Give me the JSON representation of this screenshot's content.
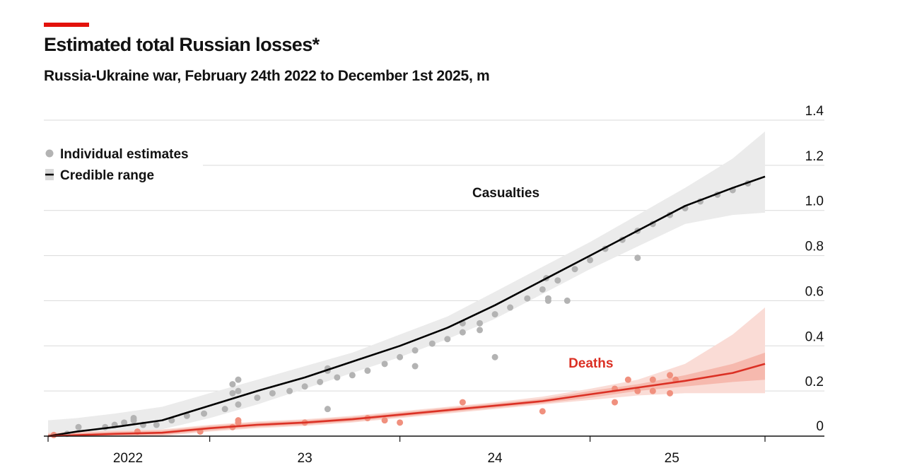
{
  "colors": {
    "accent": "#e3120b",
    "casualties_line": "#000000",
    "casualties_band": "#ebebeb",
    "casualties_points": "#b3b3b3",
    "deaths_line": "#db3024",
    "deaths_band_outer": "#fadcd6",
    "deaths_band_inner": "#f6b9ae",
    "deaths_points": "#f0907e",
    "grid": "#d9d9d9"
  },
  "chart_data": {
    "type": "line",
    "title": "Estimated total Russian losses*",
    "subtitle": "Russia-Ukraine war, February 24th 2022 to December 1st 2025, m",
    "ylabel": "",
    "xlabel": "",
    "ylim": [
      0,
      1.4
    ],
    "xlim": [
      2022.15,
      2025.92
    ],
    "y_ticks": [
      0,
      0.2,
      0.4,
      0.6,
      0.8,
      1.0,
      1.2,
      1.4
    ],
    "y_tick_labels": [
      "0",
      "0.2",
      "0.4",
      "0.6",
      "0.8",
      "1.0",
      "1.2",
      "1.4"
    ],
    "x_tick_positions": [
      2022.15,
      2023.0,
      2024.0,
      2025.0,
      2025.92
    ],
    "x_labels": [
      {
        "x": 2022.57,
        "label": "2022"
      },
      {
        "x": 2023.5,
        "label": "23"
      },
      {
        "x": 2024.5,
        "label": "24"
      },
      {
        "x": 2025.43,
        "label": "25"
      }
    ],
    "legend": [
      {
        "label": "Individual estimates",
        "marker": "dot"
      },
      {
        "label": "Credible range",
        "marker": "line-band"
      }
    ],
    "series": [
      {
        "name": "Casualties",
        "label_at": {
          "x": 2025.05,
          "y": 1.08
        },
        "central": [
          [
            2022.15,
            0.0
          ],
          [
            2022.3,
            0.02
          ],
          [
            2022.5,
            0.04
          ],
          [
            2022.75,
            0.07
          ],
          [
            2023.0,
            0.135
          ],
          [
            2023.25,
            0.2
          ],
          [
            2023.5,
            0.26
          ],
          [
            2023.75,
            0.33
          ],
          [
            2024.0,
            0.4
          ],
          [
            2024.25,
            0.48
          ],
          [
            2024.5,
            0.58
          ],
          [
            2024.75,
            0.69
          ],
          [
            2025.0,
            0.8
          ],
          [
            2025.25,
            0.91
          ],
          [
            2025.5,
            1.02
          ],
          [
            2025.75,
            1.1
          ],
          [
            2025.92,
            1.15
          ]
        ],
        "upper": [
          [
            2022.15,
            0.07
          ],
          [
            2022.3,
            0.08
          ],
          [
            2022.5,
            0.1
          ],
          [
            2022.75,
            0.13
          ],
          [
            2023.0,
            0.19
          ],
          [
            2023.25,
            0.25
          ],
          [
            2023.5,
            0.31
          ],
          [
            2023.75,
            0.37
          ],
          [
            2024.0,
            0.45
          ],
          [
            2024.25,
            0.53
          ],
          [
            2024.5,
            0.64
          ],
          [
            2024.75,
            0.75
          ],
          [
            2025.0,
            0.86
          ],
          [
            2025.25,
            0.98
          ],
          [
            2025.5,
            1.1
          ],
          [
            2025.75,
            1.23
          ],
          [
            2025.92,
            1.35
          ]
        ],
        "lower": [
          [
            2022.15,
            0.0
          ],
          [
            2022.3,
            0.0
          ],
          [
            2022.5,
            0.01
          ],
          [
            2022.75,
            0.03
          ],
          [
            2023.0,
            0.08
          ],
          [
            2023.25,
            0.14
          ],
          [
            2023.5,
            0.21
          ],
          [
            2023.75,
            0.28
          ],
          [
            2024.0,
            0.35
          ],
          [
            2024.25,
            0.43
          ],
          [
            2024.5,
            0.52
          ],
          [
            2024.75,
            0.63
          ],
          [
            2025.0,
            0.74
          ],
          [
            2025.25,
            0.84
          ],
          [
            2025.5,
            0.94
          ],
          [
            2025.75,
            0.98
          ],
          [
            2025.92,
            0.99
          ]
        ],
        "estimates": [
          [
            2022.25,
            0.01
          ],
          [
            2022.31,
            0.04
          ],
          [
            2022.45,
            0.04
          ],
          [
            2022.5,
            0.05
          ],
          [
            2022.55,
            0.06
          ],
          [
            2022.6,
            0.07
          ],
          [
            2022.6,
            0.08
          ],
          [
            2022.65,
            0.05
          ],
          [
            2022.72,
            0.05
          ],
          [
            2022.8,
            0.07
          ],
          [
            2022.88,
            0.09
          ],
          [
            2022.97,
            0.1
          ],
          [
            2023.08,
            0.12
          ],
          [
            2023.12,
            0.23
          ],
          [
            2023.12,
            0.19
          ],
          [
            2023.15,
            0.25
          ],
          [
            2023.15,
            0.2
          ],
          [
            2023.15,
            0.14
          ],
          [
            2023.25,
            0.17
          ],
          [
            2023.33,
            0.19
          ],
          [
            2023.42,
            0.2
          ],
          [
            2023.5,
            0.22
          ],
          [
            2023.58,
            0.24
          ],
          [
            2023.62,
            0.3
          ],
          [
            2023.62,
            0.29
          ],
          [
            2023.62,
            0.12
          ],
          [
            2023.67,
            0.26
          ],
          [
            2023.75,
            0.27
          ],
          [
            2023.83,
            0.29
          ],
          [
            2023.92,
            0.32
          ],
          [
            2024.0,
            0.35
          ],
          [
            2024.08,
            0.38
          ],
          [
            2024.08,
            0.31
          ],
          [
            2024.17,
            0.41
          ],
          [
            2024.25,
            0.43
          ],
          [
            2024.33,
            0.46
          ],
          [
            2024.33,
            0.5
          ],
          [
            2024.42,
            0.5
          ],
          [
            2024.42,
            0.47
          ],
          [
            2024.5,
            0.54
          ],
          [
            2024.5,
            0.35
          ],
          [
            2024.58,
            0.57
          ],
          [
            2024.67,
            0.61
          ],
          [
            2024.75,
            0.65
          ],
          [
            2024.77,
            0.7
          ],
          [
            2024.78,
            0.61
          ],
          [
            2024.78,
            0.6
          ],
          [
            2024.83,
            0.69
          ],
          [
            2024.88,
            0.6
          ],
          [
            2024.92,
            0.74
          ],
          [
            2025.0,
            0.78
          ],
          [
            2025.08,
            0.83
          ],
          [
            2025.17,
            0.87
          ],
          [
            2025.25,
            0.91
          ],
          [
            2025.25,
            0.79
          ],
          [
            2025.33,
            0.94
          ],
          [
            2025.42,
            0.98
          ],
          [
            2025.5,
            1.01
          ],
          [
            2025.58,
            1.04
          ],
          [
            2025.67,
            1.07
          ],
          [
            2025.75,
            1.09
          ],
          [
            2025.83,
            1.12
          ]
        ]
      },
      {
        "name": "Deaths",
        "label_at": {
          "x": 2025.37,
          "y": 0.325
        },
        "central": [
          [
            2022.15,
            0.0
          ],
          [
            2022.5,
            0.01
          ],
          [
            2022.75,
            0.015
          ],
          [
            2023.0,
            0.035
          ],
          [
            2023.25,
            0.05
          ],
          [
            2023.5,
            0.06
          ],
          [
            2023.75,
            0.075
          ],
          [
            2024.0,
            0.095
          ],
          [
            2024.25,
            0.115
          ],
          [
            2024.5,
            0.135
          ],
          [
            2024.75,
            0.155
          ],
          [
            2025.0,
            0.185
          ],
          [
            2025.25,
            0.215
          ],
          [
            2025.5,
            0.245
          ],
          [
            2025.75,
            0.28
          ],
          [
            2025.92,
            0.32
          ]
        ],
        "inner_upper": [
          [
            2022.15,
            0.01
          ],
          [
            2022.5,
            0.02
          ],
          [
            2022.75,
            0.025
          ],
          [
            2023.0,
            0.045
          ],
          [
            2023.25,
            0.06
          ],
          [
            2023.5,
            0.07
          ],
          [
            2023.75,
            0.085
          ],
          [
            2024.0,
            0.105
          ],
          [
            2024.25,
            0.125
          ],
          [
            2024.5,
            0.145
          ],
          [
            2024.75,
            0.165
          ],
          [
            2025.0,
            0.2
          ],
          [
            2025.25,
            0.23
          ],
          [
            2025.5,
            0.27
          ],
          [
            2025.75,
            0.32
          ],
          [
            2025.92,
            0.37
          ]
        ],
        "inner_lower": [
          [
            2022.15,
            0.0
          ],
          [
            2022.5,
            0.0
          ],
          [
            2022.75,
            0.005
          ],
          [
            2023.0,
            0.025
          ],
          [
            2023.25,
            0.04
          ],
          [
            2023.5,
            0.05
          ],
          [
            2023.75,
            0.065
          ],
          [
            2024.0,
            0.085
          ],
          [
            2024.25,
            0.105
          ],
          [
            2024.5,
            0.125
          ],
          [
            2024.75,
            0.145
          ],
          [
            2025.0,
            0.17
          ],
          [
            2025.25,
            0.2
          ],
          [
            2025.5,
            0.22
          ],
          [
            2025.75,
            0.24
          ],
          [
            2025.92,
            0.25
          ]
        ],
        "upper": [
          [
            2022.15,
            0.015
          ],
          [
            2022.5,
            0.025
          ],
          [
            2022.75,
            0.03
          ],
          [
            2023.0,
            0.05
          ],
          [
            2023.25,
            0.065
          ],
          [
            2023.5,
            0.075
          ],
          [
            2023.75,
            0.09
          ],
          [
            2024.0,
            0.11
          ],
          [
            2024.25,
            0.13
          ],
          [
            2024.5,
            0.15
          ],
          [
            2024.75,
            0.175
          ],
          [
            2025.0,
            0.21
          ],
          [
            2025.25,
            0.25
          ],
          [
            2025.5,
            0.32
          ],
          [
            2025.75,
            0.45
          ],
          [
            2025.92,
            0.57
          ]
        ],
        "lower": [
          [
            2022.15,
            0.0
          ],
          [
            2022.5,
            0.0
          ],
          [
            2022.75,
            0.0
          ],
          [
            2023.0,
            0.02
          ],
          [
            2023.25,
            0.035
          ],
          [
            2023.5,
            0.045
          ],
          [
            2023.75,
            0.06
          ],
          [
            2024.0,
            0.08
          ],
          [
            2024.25,
            0.1
          ],
          [
            2024.5,
            0.12
          ],
          [
            2024.75,
            0.14
          ],
          [
            2025.0,
            0.16
          ],
          [
            2025.25,
            0.18
          ],
          [
            2025.5,
            0.19
          ],
          [
            2025.75,
            0.19
          ],
          [
            2025.92,
            0.19
          ]
        ],
        "estimates": [
          [
            2022.18,
            0.005
          ],
          [
            2022.62,
            0.02
          ],
          [
            2022.95,
            0.02
          ],
          [
            2023.12,
            0.04
          ],
          [
            2023.15,
            0.06
          ],
          [
            2023.15,
            0.07
          ],
          [
            2023.5,
            0.06
          ],
          [
            2023.83,
            0.08
          ],
          [
            2023.92,
            0.07
          ],
          [
            2024.0,
            0.06
          ],
          [
            2024.33,
            0.15
          ],
          [
            2024.75,
            0.11
          ],
          [
            2025.13,
            0.21
          ],
          [
            2025.13,
            0.15
          ],
          [
            2025.2,
            0.25
          ],
          [
            2025.25,
            0.2
          ],
          [
            2025.33,
            0.2
          ],
          [
            2025.33,
            0.25
          ],
          [
            2025.42,
            0.27
          ],
          [
            2025.42,
            0.19
          ],
          [
            2025.45,
            0.25
          ]
        ]
      }
    ]
  }
}
